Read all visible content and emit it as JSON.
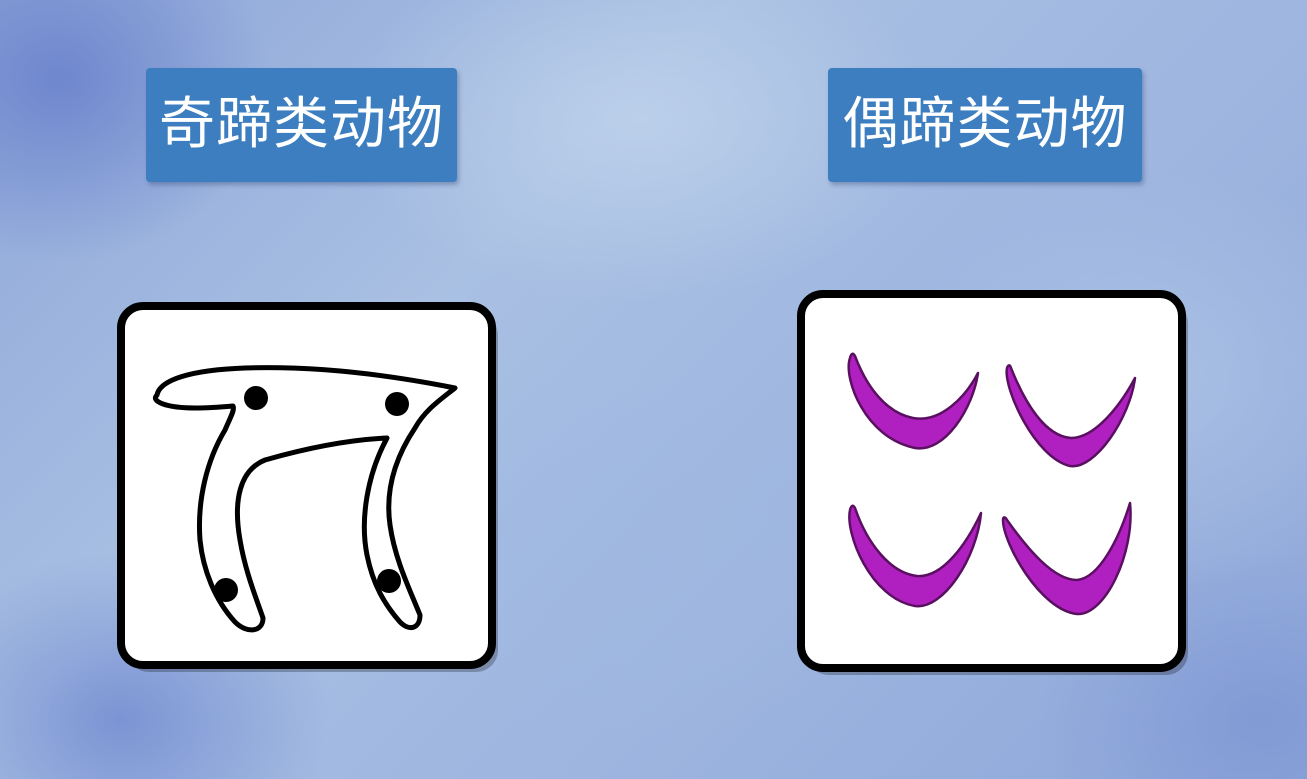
{
  "labels": {
    "odd_toed": "奇蹄类动物",
    "even_toed": "偶蹄类动物"
  },
  "colors": {
    "label_bg": "#3c7ebf",
    "hoof_purple": "#b020c0",
    "outline": "#000000",
    "panel_bg": "#ffffff"
  },
  "icons": {
    "odd_toed_panel": "odd-toed-hoof-outline-icon",
    "even_toed_panel": "even-toed-hoof-pairs-icon"
  }
}
